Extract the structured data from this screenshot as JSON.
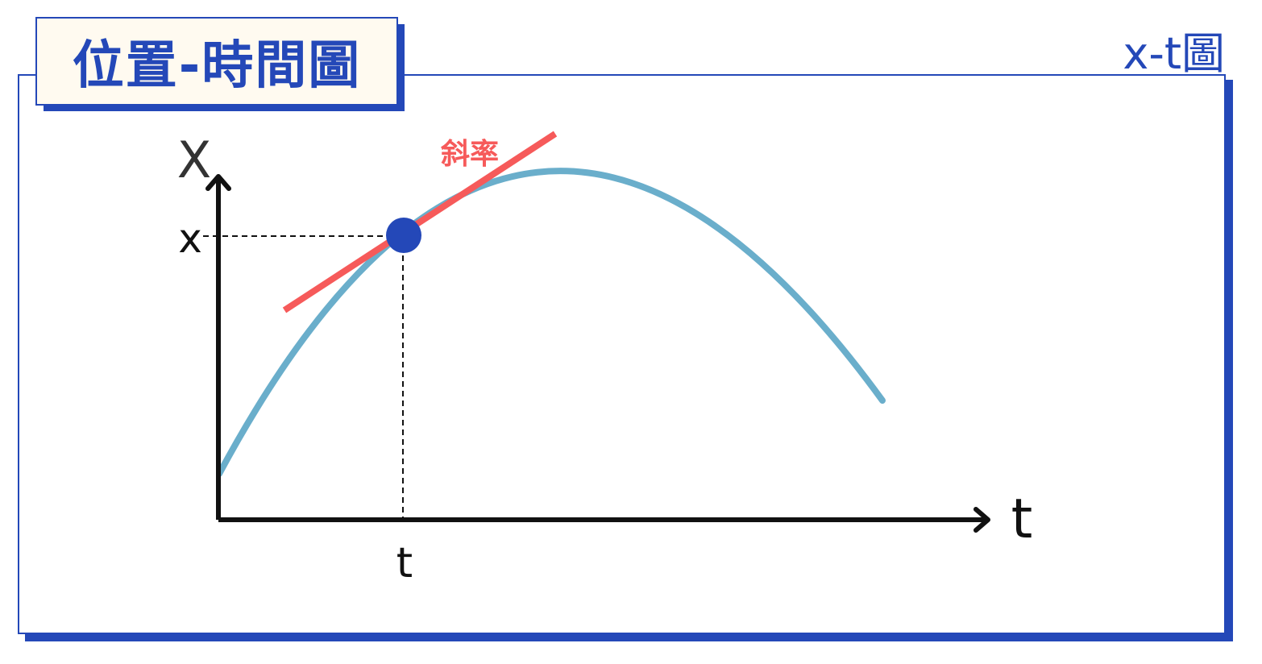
{
  "header": {
    "title": "位置-時間圖",
    "corner_label": "x-t圖"
  },
  "diagram": {
    "y_axis_label": "X",
    "x_axis_label": "t",
    "point_x_label": "x",
    "point_t_label": "t",
    "slope_label": "斜率",
    "colors": {
      "frame": "#2448b8",
      "curve": "#6aaecb",
      "tangent": "#f65a5a",
      "point": "#2448b8",
      "axis": "#111111"
    }
  }
}
